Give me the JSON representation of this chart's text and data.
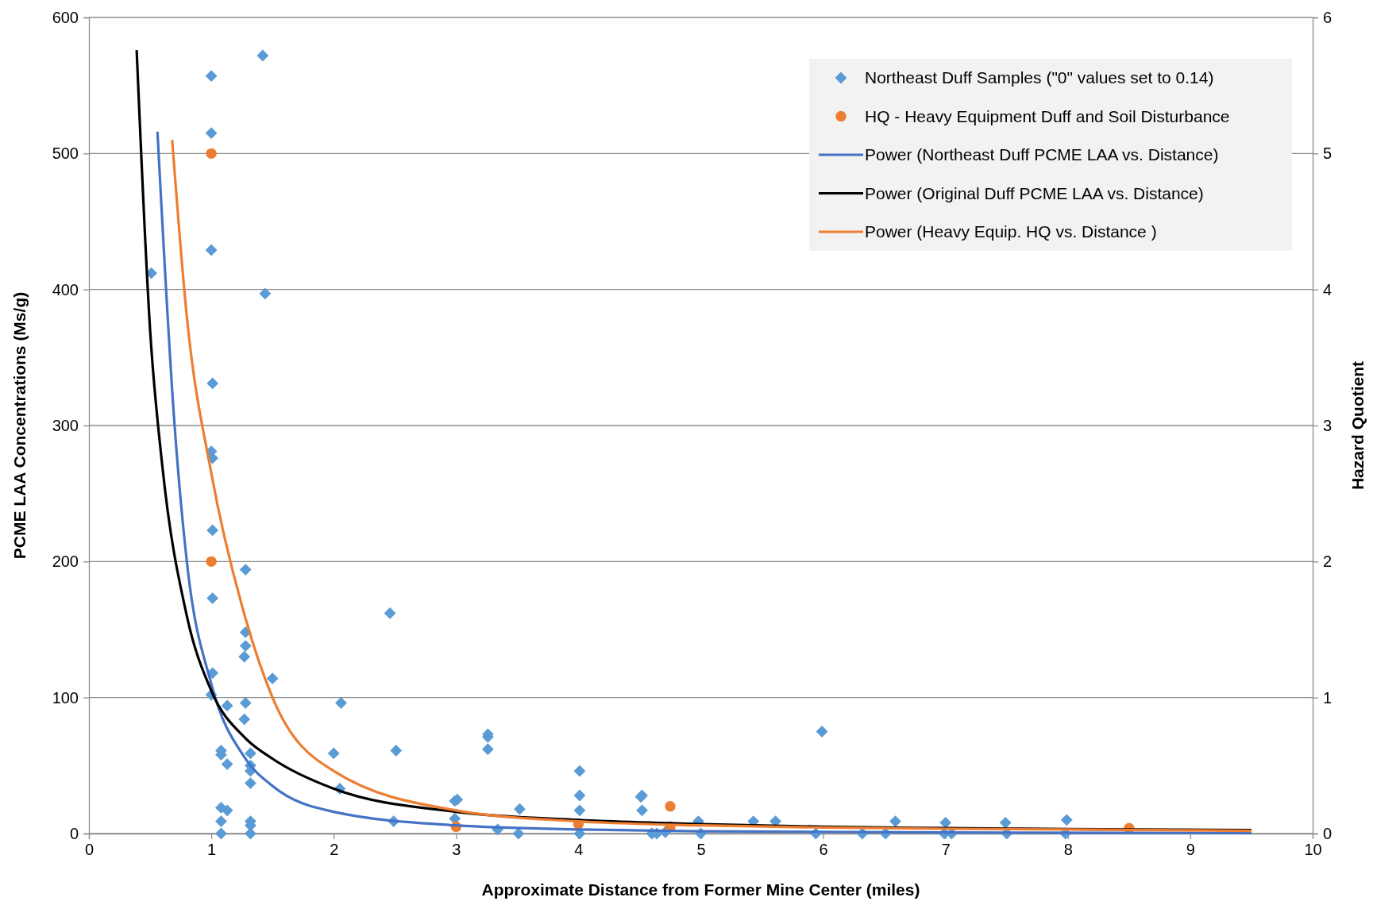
{
  "chart_data": {
    "type": "scatter",
    "xlabel": "Approximate Distance from Former Mine Center (miles)",
    "ylabel": "PCME LAA Concentrations (Ms/g)",
    "y2label": "Hazard Quotient",
    "xlim": [
      0,
      10
    ],
    "xticks": [
      0,
      1,
      2,
      3,
      4,
      5,
      6,
      7,
      8,
      9,
      10
    ],
    "ylim": [
      0,
      600
    ],
    "yticks": [
      0,
      100,
      200,
      300,
      400,
      500,
      600
    ],
    "y2lim": [
      0,
      6
    ],
    "y2ticks": [
      0,
      1,
      2,
      3,
      4,
      5,
      6
    ],
    "grid": "y",
    "legend": "top right",
    "series": [
      {
        "name": "Northeast Duff Samples (\"0\" values set to 0.14)",
        "marker": "diamond",
        "color": "#5b9bd5",
        "x": [
          0.51,
          1.0,
          1.0,
          1.0,
          1.42,
          1.44,
          1.01,
          1.0,
          1.01,
          1.01,
          1.28,
          1.01,
          1.28,
          1.28,
          1.27,
          1.01,
          1.5,
          1.0,
          1.28,
          1.13,
          2.06,
          1.27,
          2.46,
          1.08,
          1.08,
          1.32,
          1.13,
          1.32,
          1.32,
          1.32,
          1.08,
          1.13,
          1.08,
          1.32,
          1.32,
          1.08,
          1.32,
          2.0,
          2.05,
          2.51,
          2.49,
          2.99,
          3.01,
          2.99,
          3.26,
          3.26,
          3.26,
          3.34,
          3.52,
          3.51,
          4.01,
          4.01,
          4.01,
          4.01,
          4.52,
          4.51,
          4.52,
          4.6,
          4.64,
          4.71,
          4.98,
          5.0,
          5.43,
          5.61,
          5.99,
          5.94,
          6.32,
          6.51,
          6.59,
          7.0,
          6.99,
          7.05,
          7.49,
          7.5,
          7.99,
          7.98
        ],
        "values": [
          412,
          557,
          515,
          429,
          572,
          397,
          331,
          281,
          276,
          223,
          194,
          173,
          148,
          138,
          130,
          118,
          114,
          102,
          96,
          94,
          96,
          84,
          162,
          61,
          58,
          59,
          51,
          50,
          46,
          37,
          19,
          17,
          9,
          9,
          6,
          0,
          0,
          59,
          33,
          61,
          9,
          24,
          25,
          11,
          73,
          71,
          62,
          3,
          18,
          0,
          46,
          28,
          17,
          0,
          28,
          27,
          17,
          0,
          0,
          1,
          9,
          0,
          9,
          9,
          75,
          0,
          0,
          0,
          9,
          8,
          0,
          0,
          8,
          0,
          10,
          0
        ]
      },
      {
        "name": "HQ - Heavy Equipment Duff and Soil Disturbance",
        "marker": "circle",
        "axis": "y2",
        "color": "#ed7d31",
        "x": [
          1.0,
          1.0,
          3.0,
          4.0,
          4.75,
          4.75,
          8.5
        ],
        "values": [
          5,
          2,
          0.05,
          0.07,
          0.2,
          0.05,
          0.04
        ]
      },
      {
        "name": "Power (Northeast Duff PCME LAA vs. Distance)",
        "type": "line",
        "marker": "none",
        "color": "#4472c4",
        "x": [
          0.56,
          0.7,
          0.8,
          1,
          1.28,
          1.5,
          2,
          3,
          4,
          5,
          7,
          9.5
        ],
        "values": [
          516,
          300,
          200,
          110,
          55,
          35,
          16,
          6,
          3,
          1.7,
          0.8,
          0.4
        ]
      },
      {
        "name": "Power (Original Duff PCME LAA vs. Distance)",
        "type": "line",
        "marker": "none",
        "color": "#000000",
        "x": [
          0.39,
          0.5,
          0.6,
          0.8,
          1,
          1.28,
          1.5,
          2,
          3,
          4,
          5,
          6,
          7,
          8,
          9.5
        ],
        "values": [
          576,
          370,
          270,
          160,
          105,
          70,
          55,
          33,
          16,
          10,
          7,
          5,
          4,
          3.3,
          2.5
        ]
      },
      {
        "name": "Power (Heavy Equip. HQ vs. Distance )",
        "type": "line",
        "marker": "none",
        "axis": "y2",
        "color": "#ed7d31",
        "x": [
          0.68,
          0.8,
          1,
          1.28,
          1.5,
          2,
          3,
          4,
          5,
          6,
          7,
          8,
          9.5
        ],
        "values": [
          5.1,
          3.8,
          2.65,
          1.58,
          1.0,
          0.46,
          0.17,
          0.09,
          0.06,
          0.045,
          0.035,
          0.03,
          0.02
        ]
      }
    ]
  }
}
